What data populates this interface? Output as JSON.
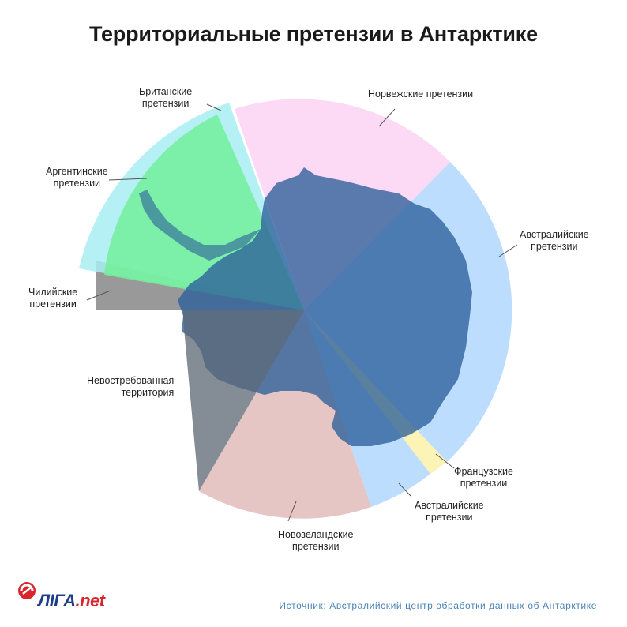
{
  "title": "Территориальные претензии в Антарктике",
  "claims": [
    {
      "id": "norway",
      "line1": "Норвежские претензии",
      "line2": "",
      "color": "#fcd9f5"
    },
    {
      "id": "australia_east",
      "line1": "Австралийские",
      "line2": "претензии",
      "color": "#bcddfd"
    },
    {
      "id": "france",
      "line1": "Французские",
      "line2": "претензии",
      "color": "#fcf4b6"
    },
    {
      "id": "australia_west",
      "line1": "Австралийские",
      "line2": "претензии",
      "color": "#bcddfd"
    },
    {
      "id": "new_zealand",
      "line1": "Новозеландские",
      "line2": "претензии",
      "color": "#e9c7c7"
    },
    {
      "id": "unclaimed",
      "line1": "Невостребованная",
      "line2": "территория",
      "color": "#7a8796"
    },
    {
      "id": "chile",
      "line1": "Чилийские",
      "line2": "претензии",
      "color": "#8f8f8f"
    },
    {
      "id": "argentina",
      "line1": "Аргентинские",
      "line2": "претензии",
      "color": "#86f0a8"
    },
    {
      "id": "britain",
      "line1": "Британские",
      "line2": "претензии",
      "color": "#b7edf0"
    }
  ],
  "continent_color": "#4f80b4",
  "source": "Источник: Австралийский центр обработки данных об Антарктике",
  "logo": {
    "main": "ЛІГА",
    "suffix": ".net"
  }
}
